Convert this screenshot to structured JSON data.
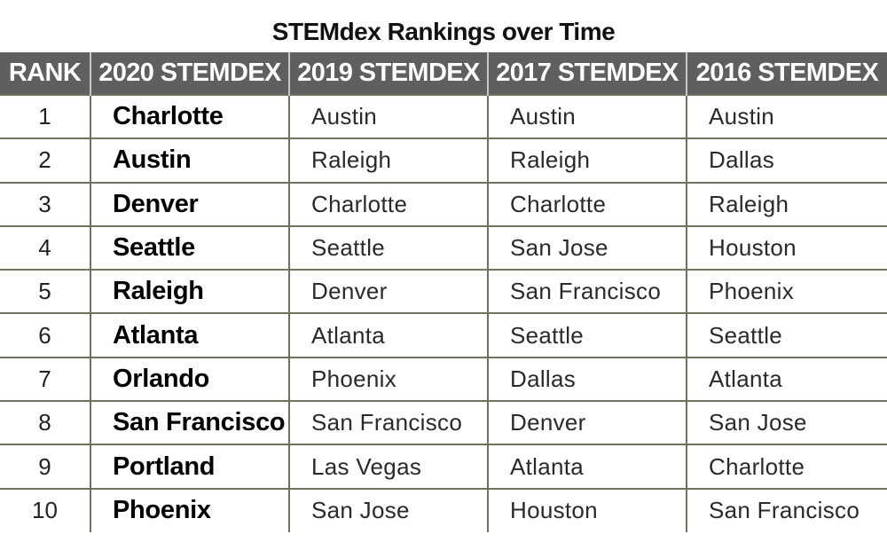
{
  "title": "STEMdex Rankings over Time",
  "colors": {
    "header_background": "#5f5f5d",
    "header_text": "#ffffff",
    "rule_lines": "#6f735e"
  },
  "chart_data": {
    "type": "table",
    "title": "STEMdex Rankings over Time",
    "columns": [
      "RANK",
      "2020 STEMDEX",
      "2019 STEMDEX",
      "2017 STEMDEX",
      "2016 STEMDEX"
    ],
    "rows": [
      [
        "1",
        "Charlotte",
        "Austin",
        "Austin",
        "Austin"
      ],
      [
        "2",
        "Austin",
        "Raleigh",
        "Raleigh",
        "Dallas"
      ],
      [
        "3",
        "Denver",
        "Charlotte",
        "Charlotte",
        "Raleigh"
      ],
      [
        "4",
        "Seattle",
        "Seattle",
        "San Jose",
        "Houston"
      ],
      [
        "5",
        "Raleigh",
        "Denver",
        "San Francisco",
        "Phoenix"
      ],
      [
        "6",
        "Atlanta",
        "Atlanta",
        "Seattle",
        "Seattle"
      ],
      [
        "7",
        "Orlando",
        "Phoenix",
        "Dallas",
        "Atlanta"
      ],
      [
        "8",
        "San Francisco",
        "San Francisco",
        "Denver",
        "San Jose"
      ],
      [
        "9",
        "Portland",
        "Las Vegas",
        "Atlanta",
        "Charlotte"
      ],
      [
        "10",
        "Phoenix",
        "San Jose",
        "Houston",
        "San Francisco"
      ]
    ]
  }
}
